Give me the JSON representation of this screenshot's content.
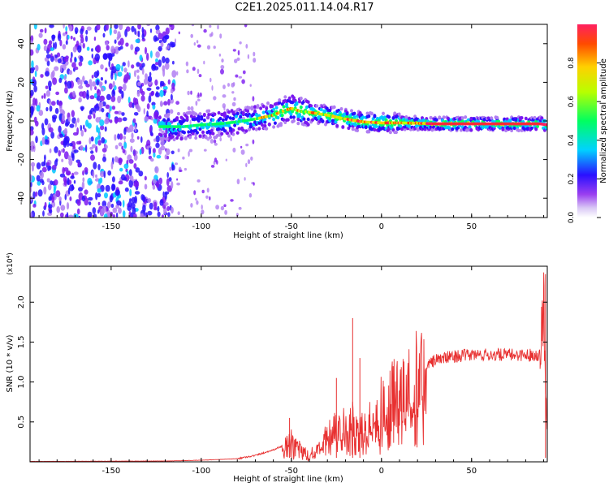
{
  "title": "C2E1.2025.011.14.04.R17",
  "chart_data": [
    {
      "type": "heatmap",
      "xlabel": "Height of straight line (km)",
      "ylabel": "Frequency (Hz)",
      "xlim": [
        -195,
        92
      ],
      "ylim": [
        -50,
        50
      ],
      "xticks": [
        -150,
        -100,
        -50,
        0,
        50
      ],
      "yticks": [
        -40,
        -20,
        0,
        20,
        40
      ],
      "colorbar": {
        "label": "Normalized spectral amplitude",
        "range": [
          0,
          1
        ],
        "ticks": [
          "0.0",
          "0.2",
          "0.4",
          "0.6",
          "0.8"
        ]
      },
      "ridge": {
        "x": [
          -123,
          -110,
          -100,
          -90,
          -80,
          -70,
          -60,
          -55,
          -50,
          -45,
          -40,
          -30,
          -20,
          -10,
          0,
          10,
          20,
          30,
          50,
          70,
          88,
          92
        ],
        "y": [
          -3,
          -3,
          -2,
          -1.5,
          -0.5,
          1,
          3,
          5,
          6.5,
          5,
          4.5,
          3,
          1,
          -0.5,
          -1,
          -1,
          -1.2,
          -1.5,
          -1.5,
          -1.5,
          -1.5,
          -2
        ]
      },
      "grid": false
    },
    {
      "type": "line",
      "xlabel": "Height of straight line (km)",
      "ylabel": "SNR (10 * v/v)",
      "y_multiplier": "(x10⁴)",
      "xlim": [
        -195,
        92
      ],
      "ylim": [
        0,
        2.45
      ],
      "xticks": [
        -150,
        -100,
        -50,
        0,
        50
      ],
      "yticks": [
        0.5,
        1.0,
        1.5,
        2.0
      ],
      "color": "#e83030",
      "envelope": {
        "x": [
          -195,
          -120,
          -100,
          -80,
          -70,
          -60,
          -55,
          -50,
          -45,
          -40,
          -35,
          -30,
          -25,
          -20,
          -15,
          -10,
          -5,
          0,
          5,
          10,
          15,
          20,
          25,
          30,
          40,
          50,
          60,
          70,
          80,
          88,
          90,
          91,
          92
        ],
        "y": [
          0.005,
          0.01,
          0.02,
          0.04,
          0.08,
          0.15,
          0.2,
          0.3,
          0.2,
          0.05,
          0.2,
          0.35,
          0.45,
          0.55,
          0.6,
          0.55,
          0.6,
          0.75,
          0.85,
          0.95,
          1.05,
          1.15,
          1.2,
          1.28,
          1.32,
          1.34,
          1.34,
          1.34,
          1.34,
          1.34,
          2.2,
          1.0,
          0.4
        ]
      },
      "spikes": [
        {
          "x": -51,
          "y": 0.55
        },
        {
          "x": -16,
          "y": 1.8
        },
        {
          "x": -25,
          "y": 1.05
        },
        {
          "x": -12,
          "y": 1.3
        },
        {
          "x": 91,
          "y": 2.35
        }
      ],
      "grid": false
    }
  ]
}
